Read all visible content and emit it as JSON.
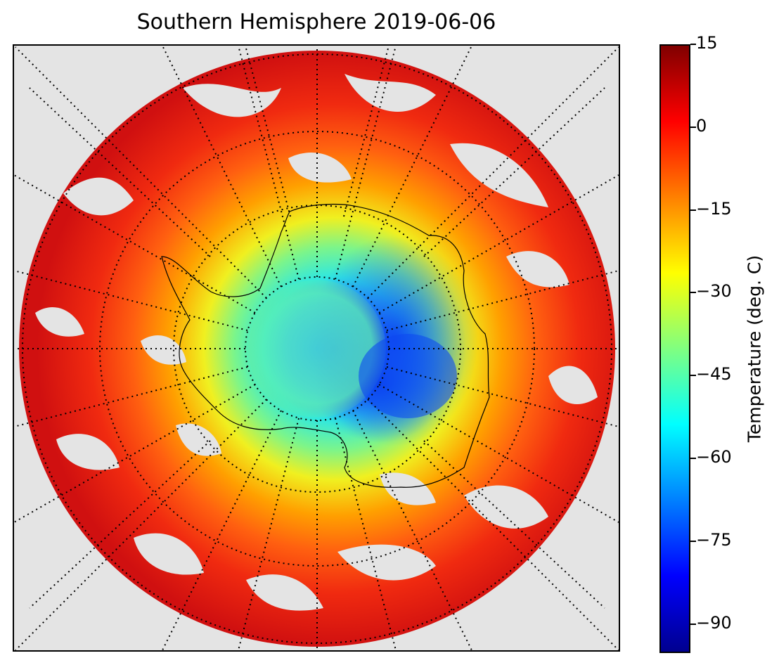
{
  "title": "Southern Hemisphere 2019-06-06",
  "map": {
    "projection": "south-polar-stereographic",
    "parallels_drawn": true,
    "meridians_drawn": true,
    "gridline_style": "dotted",
    "background_color": "#e4e4e4",
    "field": "surface temperature (satellite swath)",
    "features": [
      "antarctica-coastline",
      "ice-sheet-cold-core",
      "ocean-warm-ring",
      "cloud-gaps"
    ]
  },
  "colorbar": {
    "label": "Temperature (deg. C)",
    "min": -95,
    "max": 15,
    "ticks": [
      "15",
      "0",
      "−15",
      "−30",
      "−45",
      "−60",
      "−75",
      "−90"
    ],
    "tick_values": [
      15,
      0,
      -15,
      -30,
      -45,
      -60,
      -75,
      -90
    ],
    "colormap": "jet",
    "colormap_stops": [
      "#00008f",
      "#0000ff",
      "#0080ff",
      "#00ffff",
      "#80ff80",
      "#ffff00",
      "#ff8000",
      "#ff0000",
      "#800000"
    ]
  }
}
